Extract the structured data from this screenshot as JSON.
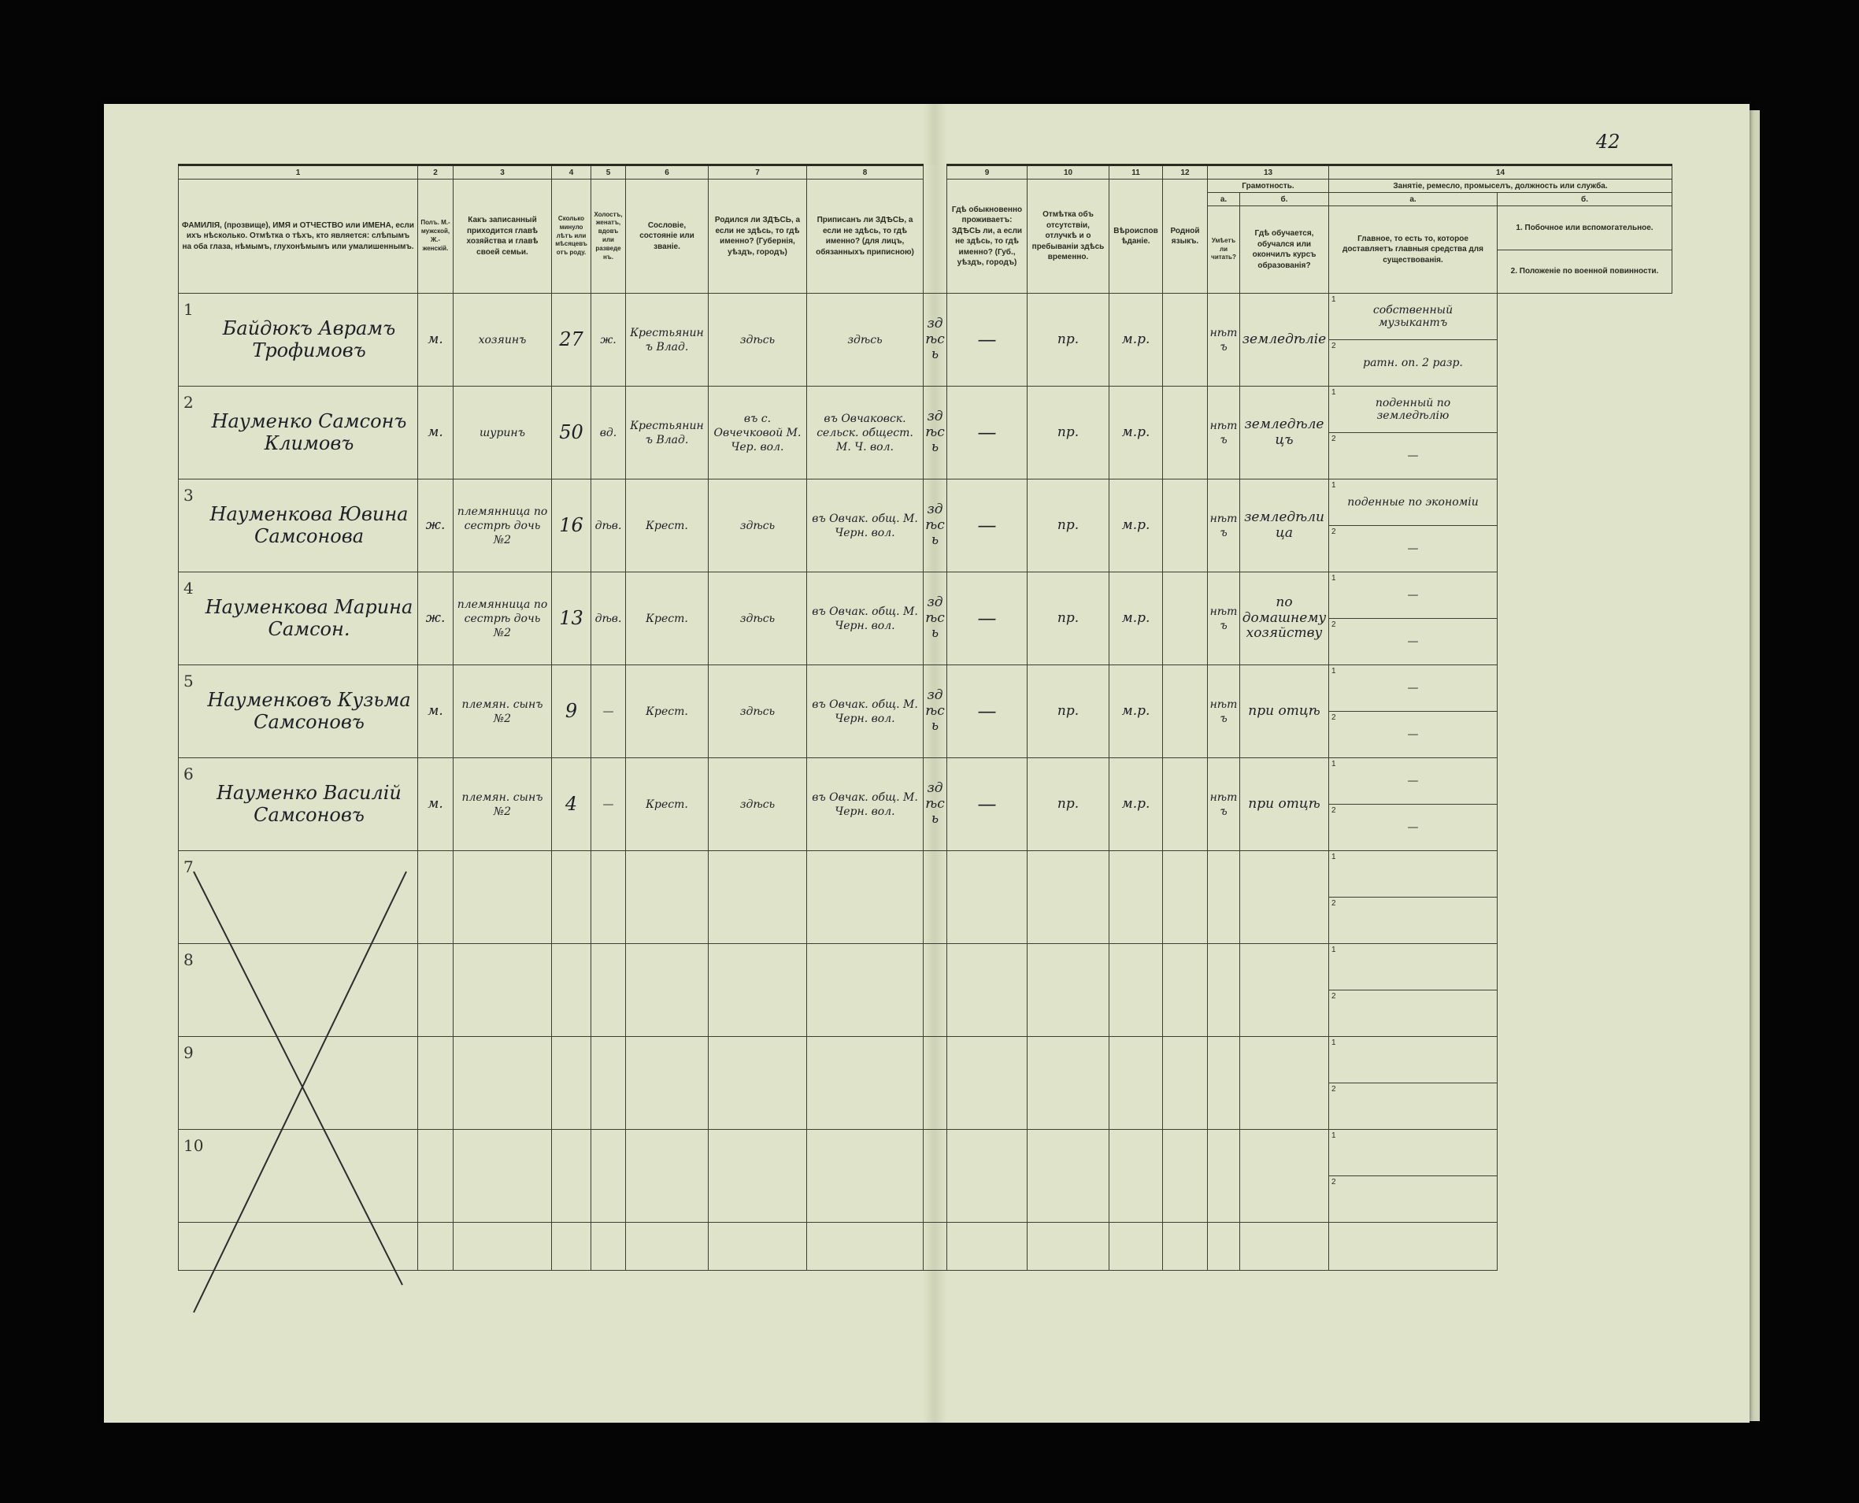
{
  "page_number": "42",
  "column_numbers": [
    "1",
    "2",
    "3",
    "4",
    "5",
    "6",
    "7",
    "8",
    "9",
    "10",
    "11",
    "12",
    "13",
    "14"
  ],
  "headers": {
    "c1": "ФАМИЛІЯ, (прозвище), ИМЯ и ОТЧЕСТВО или ИМЕНА, если ихъ нѣсколько. Отмѣтка о тѣхъ, кто является: слѣпымъ на оба глаза, нѣмымъ, глухонѣмымъ или умалишеннымъ.",
    "c2": "Полъ. М.-мужской, Ж.-женскій.",
    "c3": "Какъ записанный приходится главѣ хозяйства и главѣ своей семьи.",
    "c4": "Сколько минуло лѣтъ или мѣсяцевъ отъ роду.",
    "c5": "Холостъ, женатъ, вдовъ или разведенъ.",
    "c6": "Сословіе, состояніе или званіе.",
    "c7": "Родился ли ЗДѢСЬ, а если не здѣсь, то гдѣ именно? (Губернія, уѣздъ, городъ)",
    "c8": "Приписанъ ли ЗДѢСЬ, а если не здѣсь, то гдѣ именно? (для лицъ, обязанныхъ приписною)",
    "c9": "Гдѣ обыкновенно проживаетъ: ЗДѢСЬ ли, а если не здѣсь, то гдѣ именно? (Губ., уѣздъ, городъ)",
    "c10": "Отмѣтка объ отсутствіи, отлучкѣ и о пребываніи здѣсь временно.",
    "c11": "Вѣроисповѣданіе.",
    "c12": "Родной языкъ.",
    "c13": "Грамотность.",
    "c13a_label": "а.",
    "c13b_label": "б.",
    "c13a": "Умѣетъ ли читать?",
    "c13b": "Гдѣ обучается, обучался или окончилъ курсъ образованія?",
    "c14": "Занятіе, ремесло, промыселъ, должность или служба.",
    "c14a_label": "а.",
    "c14b_label": "б.",
    "c14a": "Главное, то есть то, которое доставляетъ главныя средства для существованія.",
    "c14b1": "1. Побочное или вспомогательное.",
    "c14b2": "2. Положеніе по военной повинности."
  },
  "rows": [
    {
      "n": "1",
      "name": "Байдюкъ Аврамъ Трофимовъ",
      "sex": "м.",
      "relation": "хозяинъ",
      "age": "27",
      "marital": "ж.",
      "estate": "Крестьянинъ Влад.",
      "born": "здѣсь",
      "registered": "здѣсь",
      "resides": "здѣсь",
      "absence": "—",
      "religion": "пр.",
      "language": "м.р.",
      "literate": "",
      "reads": "нѣтъ",
      "occupation": "земледѣліе",
      "side1": "собственный музыкантъ",
      "side2": "ратн. оп. 2 разр."
    },
    {
      "n": "2",
      "name": "Науменко Самсонъ Климовъ",
      "sex": "м.",
      "relation": "шуринъ",
      "age": "50",
      "marital": "вд.",
      "estate": "Крестьянинъ Влад.",
      "born": "въ с. Овчечковой М. Чер. вол.",
      "registered": "въ Овчаковск. сельск. общест. М. Ч. вол.",
      "resides": "здѣсь",
      "absence": "—",
      "religion": "пр.",
      "language": "м.р.",
      "literate": "",
      "reads": "нѣтъ",
      "occupation": "земледѣлецъ",
      "side1": "поденный по земледѣлію",
      "side2": "—"
    },
    {
      "n": "3",
      "name": "Науменкова Ювина Самсонова",
      "sex": "ж.",
      "relation": "племянница по сестрѣ дочь №2",
      "age": "16",
      "marital": "дѣв.",
      "estate": "Крест.",
      "born": "здѣсь",
      "registered": "въ Овчак. общ. М. Черн. вол.",
      "resides": "здѣсь",
      "absence": "—",
      "religion": "пр.",
      "language": "м.р.",
      "literate": "",
      "reads": "нѣтъ",
      "occupation": "земледѣлица",
      "side1": "поденные по экономіи",
      "side2": "—"
    },
    {
      "n": "4",
      "name": "Науменкова Марина Самсон.",
      "sex": "ж.",
      "relation": "племянница по сестрѣ дочь №2",
      "age": "13",
      "marital": "дѣв.",
      "estate": "Крест.",
      "born": "здѣсь",
      "registered": "въ Овчак. общ. М. Черн. вол.",
      "resides": "здѣсь",
      "absence": "—",
      "religion": "пр.",
      "language": "м.р.",
      "literate": "",
      "reads": "нѣтъ",
      "occupation": "по домашнему хозяйству",
      "side1": "—",
      "side2": "—"
    },
    {
      "n": "5",
      "name": "Науменковъ Кузьма Самсоновъ",
      "sex": "м.",
      "relation": "племян. сынъ №2",
      "age": "9",
      "marital": "—",
      "estate": "Крест.",
      "born": "здѣсь",
      "registered": "въ Овчак. общ. М. Черн. вол.",
      "resides": "здѣсь",
      "absence": "—",
      "religion": "пр.",
      "language": "м.р.",
      "literate": "",
      "reads": "нѣтъ",
      "occupation": "при отцѣ",
      "side1": "—",
      "side2": "—"
    },
    {
      "n": "6",
      "name": "Науменко Василій Самсоновъ",
      "sex": "м.",
      "relation": "племян. сынъ №2",
      "age": "4",
      "marital": "—",
      "estate": "Крест.",
      "born": "здѣсь",
      "registered": "въ Овчак. общ. М. Черн. вол.",
      "resides": "здѣсь",
      "absence": "—",
      "religion": "пр.",
      "language": "м.р.",
      "literate": "",
      "reads": "нѣтъ",
      "occupation": "при отцѣ",
      "side1": "—",
      "side2": "—"
    }
  ],
  "empty_rows": [
    "7",
    "8",
    "9",
    "10"
  ],
  "sub_labels": [
    "1",
    "2"
  ],
  "colors": {
    "paper": "#dfe3c9",
    "ink": "#1c1e28",
    "rule": "#3b3e33",
    "background": "#050505"
  }
}
